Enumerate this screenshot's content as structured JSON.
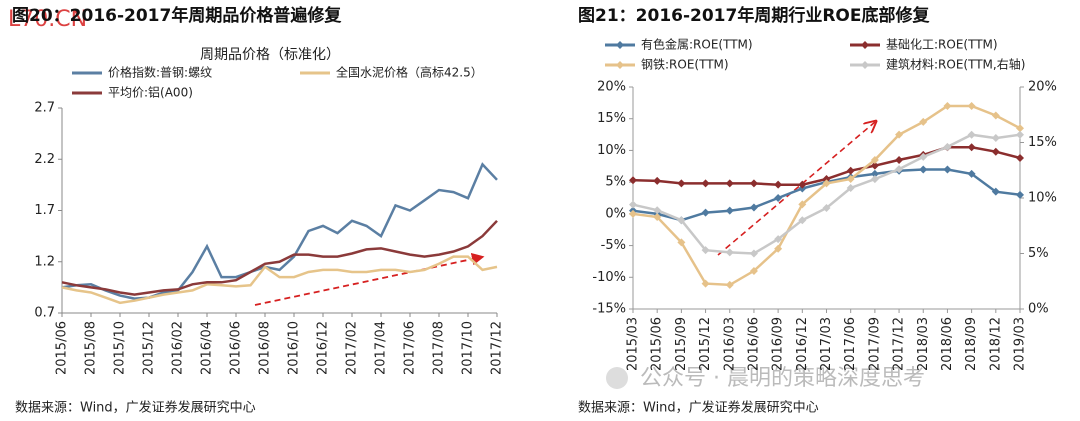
{
  "chart_data": [
    {
      "type": "line",
      "title": "图20：2016-2017年周期品价格普遍修复",
      "subtitle": "周期品价格（标准化）",
      "source": "数据来源：Wind，广发证券发展研究中心",
      "categories": [
        "2015/06",
        null,
        "2015/08",
        null,
        "2015/10",
        null,
        "2015/12",
        null,
        "2016/02",
        null,
        "2016/04",
        null,
        "2016/06",
        null,
        "2016/08",
        null,
        "2016/10",
        null,
        "2016/12",
        null,
        "2017/02",
        null,
        "2017/04",
        null,
        "2017/06",
        null,
        "2017/08",
        null,
        "2017/10",
        null,
        "2017/12"
      ],
      "series": [
        {
          "name": "价格指数:普钢:螺纹",
          "color": "#5b7fa3",
          "values": [
            0.95,
            0.97,
            0.98,
            0.92,
            0.87,
            0.84,
            0.85,
            0.9,
            0.92,
            1.1,
            1.35,
            1.05,
            1.05,
            1.1,
            1.15,
            1.12,
            1.25,
            1.5,
            1.55,
            1.48,
            1.6,
            1.55,
            1.45,
            1.75,
            1.7,
            1.8,
            1.9,
            1.88,
            1.82,
            2.15,
            2.0
          ]
        },
        {
          "name": "全国水泥价格（高标42.5）",
          "color": "#e6c48a",
          "values": [
            0.95,
            0.92,
            0.9,
            0.85,
            0.8,
            0.82,
            0.85,
            0.88,
            0.9,
            0.92,
            0.98,
            0.97,
            0.96,
            0.97,
            1.15,
            1.05,
            1.05,
            1.1,
            1.12,
            1.12,
            1.1,
            1.1,
            1.12,
            1.12,
            1.1,
            1.12,
            1.18,
            1.25,
            1.25,
            1.12,
            1.15
          ]
        },
        {
          "name": "平均价:铝(A00)",
          "color": "#8b3a3a",
          "values": [
            1.0,
            0.97,
            0.95,
            0.93,
            0.9,
            0.88,
            0.9,
            0.92,
            0.93,
            0.98,
            1.0,
            1.0,
            1.02,
            1.1,
            1.18,
            1.2,
            1.27,
            1.27,
            1.25,
            1.25,
            1.28,
            1.32,
            1.33,
            1.3,
            1.27,
            1.25,
            1.27,
            1.3,
            1.35,
            1.45,
            1.6
          ]
        }
      ],
      "ylim": [
        0.7,
        2.7
      ],
      "yticks": [
        0.7,
        1.2,
        1.7,
        2.2,
        2.7
      ],
      "markers": false
    },
    {
      "type": "line",
      "title": "图21：2016-2017年周期行业ROE底部修复",
      "source": "数据来源：Wind，广发证券发展研究中心",
      "categories": [
        "2015/03",
        "2015/06",
        "2015/09",
        "2015/12",
        "2016/03",
        "2016/06",
        "2016/09",
        "2016/12",
        "2017/03",
        "2017/06",
        "2017/09",
        "2017/12",
        "2018/03",
        "2018/06",
        "2018/09",
        "2018/12",
        "2019/03"
      ],
      "series": [
        {
          "name": "有色金属:ROE(TTM)",
          "color": "#4f7aa0",
          "values": [
            0.5,
            0,
            -1,
            0.2,
            0.5,
            1,
            2.5,
            4,
            5,
            5.8,
            6.3,
            6.8,
            7,
            7,
            6.3,
            3.5,
            3
          ]
        },
        {
          "name": "基础化工:ROE(TTM)",
          "color": "#8b2e2e",
          "values": [
            5.3,
            5.2,
            4.8,
            4.8,
            4.8,
            4.8,
            4.6,
            4.6,
            5.5,
            6.8,
            7.6,
            8.5,
            9.3,
            10.5,
            10.5,
            9.8,
            8.8
          ]
        },
        {
          "name": "钢铁:ROE(TTM)",
          "color": "#e6c28a",
          "values": [
            0,
            -0.5,
            -4.5,
            -11,
            -11.2,
            -9,
            -5.5,
            1.5,
            4.8,
            5.5,
            8.5,
            12.5,
            14.5,
            17,
            17,
            15.5,
            13.5
          ]
        },
        {
          "name": "建筑材料:ROE(TTM,右轴)",
          "color": "#c8c8c8",
          "axis": "y2",
          "values": [
            9.4,
            8.9,
            8.0,
            5.3,
            5.1,
            5.0,
            6.3,
            8.0,
            9.1,
            10.9,
            11.7,
            12.6,
            13.7,
            14.6,
            15.7,
            15.4,
            15.7
          ]
        }
      ],
      "ylim": [
        -15,
        20
      ],
      "yticks": [
        {
          "value": -15,
          "label": "-15%"
        },
        {
          "value": -10,
          "label": "-10%"
        },
        {
          "value": -5,
          "label": "-5%"
        },
        {
          "value": 0,
          "label": "0%"
        },
        {
          "value": 5,
          "label": "5%"
        },
        {
          "value": 10,
          "label": "10%"
        },
        {
          "value": 15,
          "label": "15%"
        },
        {
          "value": 20,
          "label": "20%"
        }
      ],
      "y2lim": [
        0,
        20
      ],
      "y2ticks": [
        {
          "value": 0,
          "label": "0%"
        },
        {
          "value": 5,
          "label": "5%"
        },
        {
          "value": 10,
          "label": "10%"
        },
        {
          "value": 15,
          "label": "15%"
        },
        {
          "value": 20,
          "label": "20%"
        }
      ],
      "markers": true
    }
  ],
  "watermarks": [
    "L70.CN",
    "公众号 · 晨明的策略深度思考"
  ]
}
